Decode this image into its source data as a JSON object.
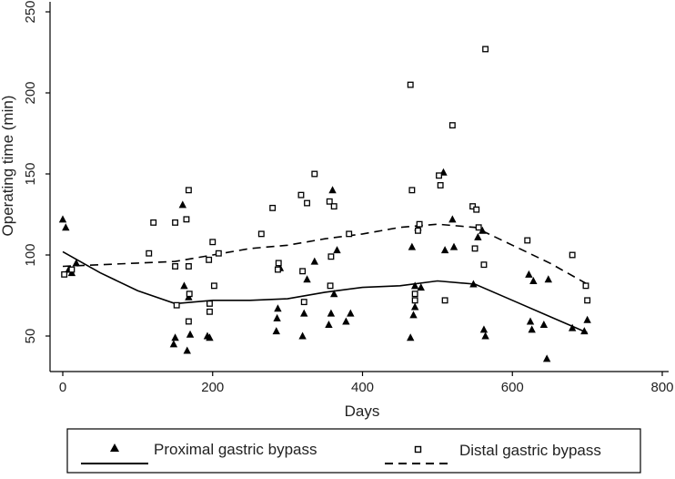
{
  "chart_data": {
    "type": "scatter",
    "xlabel": "Days",
    "ylabel": "Operating time (min)",
    "xlim": [
      0,
      800
    ],
    "ylim": [
      30,
      250
    ],
    "xticks": [
      0,
      200,
      400,
      600,
      800
    ],
    "yticks": [
      50,
      100,
      150,
      200,
      250
    ],
    "grid": false,
    "legend_position": "bottom",
    "series": [
      {
        "name": "Proximal gastric bypass",
        "marker": "filled-triangle",
        "points": [
          [
            0,
            122
          ],
          [
            4,
            117
          ],
          [
            8,
            91
          ],
          [
            12,
            89
          ],
          [
            18,
            95
          ],
          [
            148,
            45
          ],
          [
            150,
            49
          ],
          [
            160,
            131
          ],
          [
            162,
            81
          ],
          [
            166,
            41
          ],
          [
            168,
            74
          ],
          [
            170,
            51
          ],
          [
            193,
            50
          ],
          [
            196,
            49
          ],
          [
            285,
            53
          ],
          [
            286,
            61
          ],
          [
            287,
            67
          ],
          [
            290,
            92
          ],
          [
            320,
            50
          ],
          [
            322,
            64
          ],
          [
            326,
            85
          ],
          [
            336,
            96
          ],
          [
            355,
            57
          ],
          [
            358,
            64
          ],
          [
            360,
            140
          ],
          [
            362,
            76
          ],
          [
            366,
            103
          ],
          [
            378,
            59
          ],
          [
            384,
            64
          ],
          [
            464,
            49
          ],
          [
            466,
            105
          ],
          [
            468,
            63
          ],
          [
            470,
            68
          ],
          [
            470,
            81
          ],
          [
            474,
            117
          ],
          [
            478,
            80
          ],
          [
            508,
            151
          ],
          [
            510,
            103
          ],
          [
            520,
            122
          ],
          [
            522,
            105
          ],
          [
            548,
            82
          ],
          [
            554,
            111
          ],
          [
            560,
            115
          ],
          [
            562,
            54
          ],
          [
            564,
            50
          ],
          [
            622,
            88
          ],
          [
            624,
            59
          ],
          [
            626,
            54
          ],
          [
            628,
            84
          ],
          [
            642,
            57
          ],
          [
            646,
            36
          ],
          [
            648,
            85
          ],
          [
            680,
            55
          ],
          [
            696,
            53
          ],
          [
            700,
            60
          ]
        ]
      },
      {
        "name": "Distal gastric bypass",
        "marker": "hollow-square",
        "points": [
          [
            2,
            88
          ],
          [
            12,
            91
          ],
          [
            115,
            101
          ],
          [
            121,
            120
          ],
          [
            150,
            120
          ],
          [
            150,
            93
          ],
          [
            152,
            69
          ],
          [
            165,
            122
          ],
          [
            168,
            140
          ],
          [
            168,
            93
          ],
          [
            169,
            76
          ],
          [
            168,
            59
          ],
          [
            195,
            97
          ],
          [
            196,
            70
          ],
          [
            196,
            65
          ],
          [
            200,
            108
          ],
          [
            202,
            81
          ],
          [
            208,
            101
          ],
          [
            265,
            113
          ],
          [
            280,
            129
          ],
          [
            287,
            91
          ],
          [
            288,
            95
          ],
          [
            318,
            137
          ],
          [
            320,
            90
          ],
          [
            322,
            71
          ],
          [
            326,
            132
          ],
          [
            336,
            150
          ],
          [
            356,
            133
          ],
          [
            357,
            81
          ],
          [
            358,
            99
          ],
          [
            362,
            130
          ],
          [
            382,
            113
          ],
          [
            464,
            205
          ],
          [
            466,
            140
          ],
          [
            470,
            76
          ],
          [
            470,
            72
          ],
          [
            474,
            115
          ],
          [
            476,
            119
          ],
          [
            502,
            149
          ],
          [
            504,
            143
          ],
          [
            510,
            72
          ],
          [
            520,
            180
          ],
          [
            547,
            130
          ],
          [
            550,
            104
          ],
          [
            552,
            128
          ],
          [
            555,
            117
          ],
          [
            562,
            94
          ],
          [
            564,
            227
          ],
          [
            620,
            109
          ],
          [
            680,
            100
          ],
          [
            698,
            81
          ],
          [
            700,
            72
          ]
        ]
      }
    ],
    "trend_lines": [
      {
        "series": "Proximal gastric bypass",
        "style": "solid",
        "x": [
          0,
          50,
          100,
          150,
          200,
          250,
          300,
          350,
          400,
          450,
          500,
          550,
          600,
          650,
          700
        ],
        "y": [
          102,
          89,
          78,
          70,
          72,
          72,
          73,
          77,
          80,
          81,
          84,
          82,
          72,
          62,
          52
        ]
      },
      {
        "series": "Distal gastric bypass",
        "style": "dashed",
        "x": [
          0,
          50,
          100,
          150,
          200,
          250,
          300,
          350,
          400,
          450,
          500,
          550,
          600,
          650,
          700
        ],
        "y": [
          93,
          94,
          95,
          96,
          100,
          104,
          106,
          110,
          113,
          117,
          119,
          117,
          106,
          95,
          82
        ]
      }
    ]
  }
}
